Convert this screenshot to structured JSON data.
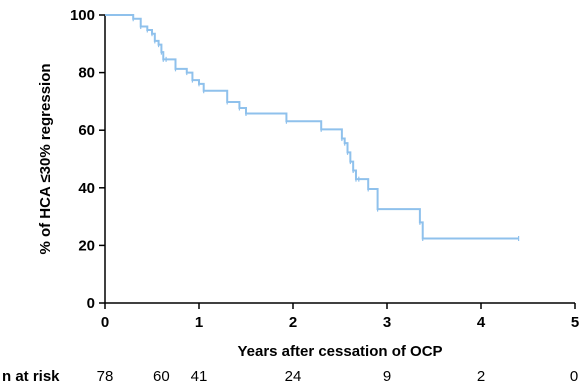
{
  "chart_data": {
    "type": "line",
    "step": true,
    "xlabel": "Years after cessation of OCP",
    "ylabel": "% of HCA ≤30% regression",
    "xlim": [
      0,
      5
    ],
    "ylim": [
      0,
      100
    ],
    "x_ticks": [
      "0",
      "1",
      "2",
      "3",
      "4",
      "5"
    ],
    "y_ticks": [
      "0",
      "20",
      "40",
      "60",
      "80",
      "100"
    ],
    "grid": false,
    "color": "#8fc1ec",
    "series": [
      {
        "name": "",
        "x": [
          0,
          0.3,
          0.38,
          0.45,
          0.5,
          0.53,
          0.57,
          0.6,
          0.62,
          0.65,
          0.75,
          0.87,
          0.93,
          1.0,
          1.05,
          1.3,
          1.43,
          1.5,
          1.93,
          2.3,
          2.52,
          2.55,
          2.58,
          2.61,
          2.64,
          2.67,
          2.7,
          2.8,
          2.9,
          3.35,
          3.38,
          4.4
        ],
        "y": [
          100,
          98.7,
          96,
          94.8,
          93.5,
          91,
          89.7,
          87.1,
          84.6,
          84.6,
          81.3,
          80,
          77.4,
          76.1,
          73.7,
          69.8,
          67.7,
          65.8,
          63.1,
          60.3,
          57.1,
          55.5,
          52.3,
          49.1,
          46,
          43,
          43,
          39.6,
          32.6,
          28,
          22.4,
          22.4
        ]
      }
    ],
    "risk_table": {
      "label": "n at risk",
      "x": [
        0,
        0.6,
        1.0,
        2.0,
        3.0,
        4.0,
        5.0
      ],
      "values": [
        "78",
        "60",
        "41",
        "24",
        "9",
        "2",
        "0"
      ]
    }
  }
}
